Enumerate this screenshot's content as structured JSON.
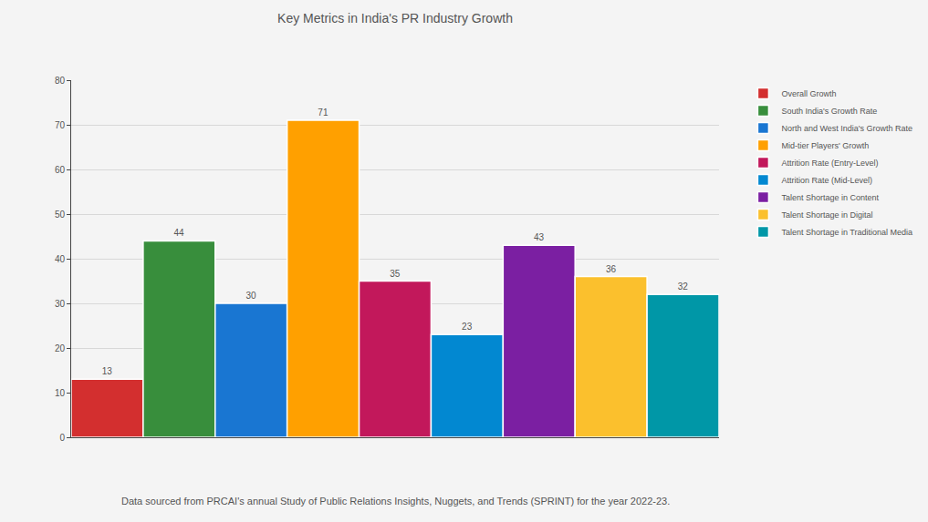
{
  "chart_data": {
    "type": "bar",
    "title": "Key Metrics in India's PR Industry Growth",
    "annotations": [
      "Data sourced from PRCAI's annual Study of Public Relations Insights, Nuggets, and Trends (SPRINT) for the year 2022-23."
    ],
    "categories": [
      "Overall Growth",
      "South India's Growth Rate",
      "North and West India's Growth Rate",
      "Mid-tier Players' Growth",
      "Attrition Rate (Entry-Level)",
      "Attrition Rate (Mid-Level)",
      "Talent Shortage in Content",
      "Talent Shortage in Digital",
      "Talent Shortage in Traditional Media"
    ],
    "values": [
      13,
      44,
      30,
      71,
      35,
      23,
      43,
      36,
      32
    ],
    "colors": [
      "#d32f2f",
      "#388e3c",
      "#1976d2",
      "#ffa000",
      "#c2185b",
      "#0288d1",
      "#7b1fa2",
      "#fbc02d",
      "#0097a7"
    ],
    "ylim": [
      0,
      80
    ],
    "yticks": [
      0,
      10,
      20,
      30,
      40,
      50,
      60,
      70,
      80
    ],
    "grid": true,
    "legend": "upper right",
    "data_labels": true,
    "tick_labels": "y"
  }
}
